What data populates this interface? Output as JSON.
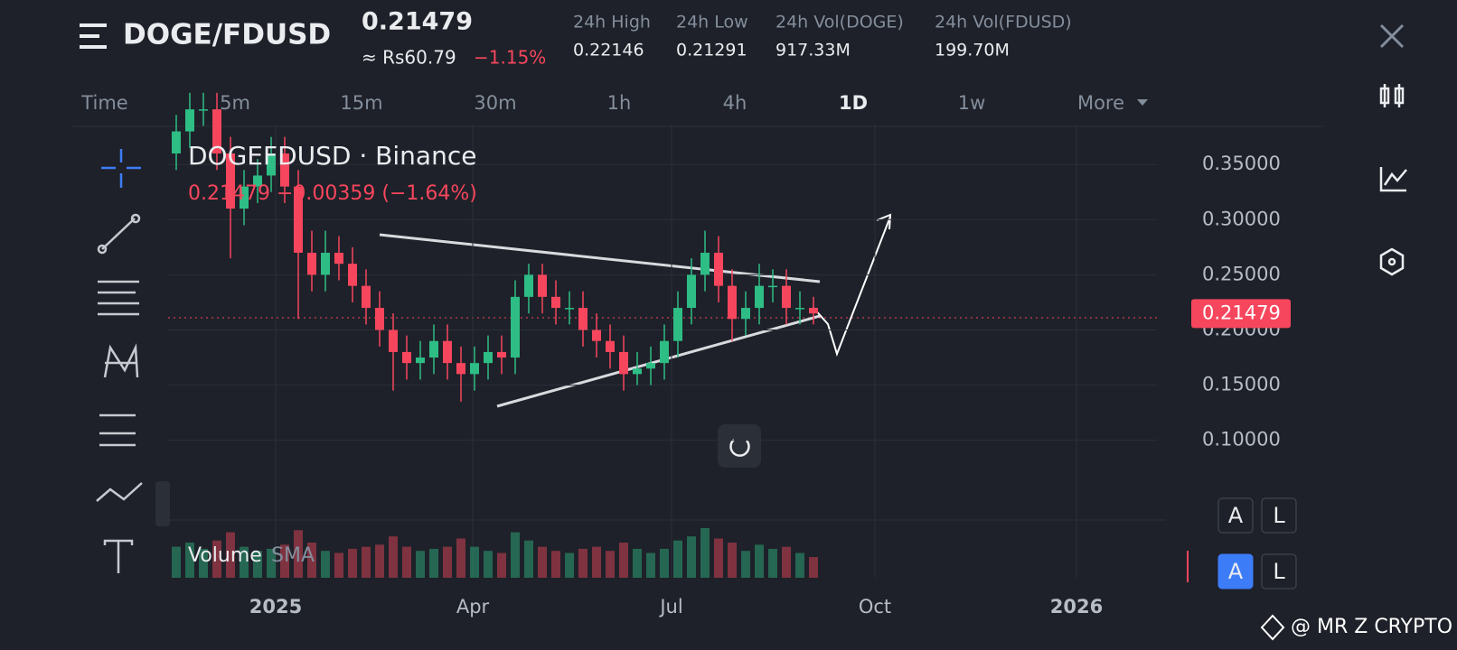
{
  "header": {
    "pair": "DOGE/FDUSD",
    "price": "0.21479",
    "fiat": "≈ Rs60.79",
    "change": "−1.15%",
    "stats": [
      {
        "label": "24h High",
        "value": "0.22146"
      },
      {
        "label": "24h Low",
        "value": "0.21291"
      },
      {
        "label": "24h Vol(DOGE)",
        "value": "917.33M"
      },
      {
        "label": "24h Vol(FDUSD)",
        "value": "199.70M"
      }
    ]
  },
  "timeframes": [
    "Time",
    "5m",
    "15m",
    "30m",
    "1h",
    "4h",
    "1D",
    "1w",
    "More"
  ],
  "chart_data": {
    "type": "candlestick",
    "title": "DOGEFDUSD · Binance",
    "subtitle": "0.21479 −0.00359 (−1.64%)",
    "open": [
      0.36,
      0.38,
      0.4,
      0.4,
      0.36,
      0.31,
      0.33,
      0.34,
      0.36,
      0.33,
      0.27,
      0.25,
      0.27,
      0.26,
      0.24,
      0.22,
      0.2,
      0.18,
      0.17,
      0.175,
      0.19,
      0.17,
      0.16,
      0.17,
      0.18,
      0.175,
      0.23,
      0.25,
      0.23,
      0.22,
      0.22,
      0.2,
      0.19,
      0.18,
      0.16,
      0.165,
      0.17,
      0.19,
      0.22,
      0.25,
      0.27,
      0.24,
      0.21,
      0.22,
      0.24,
      0.24,
      0.22,
      0.22
    ],
    "high": [
      0.395,
      0.415,
      0.415,
      0.415,
      0.375,
      0.345,
      0.355,
      0.375,
      0.375,
      0.345,
      0.29,
      0.29,
      0.285,
      0.275,
      0.255,
      0.235,
      0.215,
      0.195,
      0.19,
      0.205,
      0.205,
      0.185,
      0.185,
      0.195,
      0.195,
      0.245,
      0.26,
      0.26,
      0.245,
      0.235,
      0.235,
      0.215,
      0.205,
      0.195,
      0.18,
      0.185,
      0.205,
      0.235,
      0.265,
      0.29,
      0.285,
      0.255,
      0.235,
      0.26,
      0.255,
      0.255,
      0.235,
      0.23
    ],
    "low": [
      0.345,
      0.365,
      0.385,
      0.345,
      0.265,
      0.295,
      0.315,
      0.325,
      0.315,
      0.21,
      0.235,
      0.235,
      0.245,
      0.225,
      0.205,
      0.185,
      0.145,
      0.155,
      0.155,
      0.16,
      0.155,
      0.135,
      0.145,
      0.155,
      0.16,
      0.16,
      0.215,
      0.215,
      0.205,
      0.205,
      0.185,
      0.175,
      0.165,
      0.145,
      0.15,
      0.15,
      0.155,
      0.175,
      0.205,
      0.235,
      0.225,
      0.19,
      0.195,
      0.205,
      0.225,
      0.205,
      0.205,
      0.205
    ],
    "close": [
      0.38,
      0.4,
      0.4,
      0.36,
      0.31,
      0.33,
      0.34,
      0.36,
      0.33,
      0.27,
      0.25,
      0.27,
      0.26,
      0.24,
      0.22,
      0.2,
      0.18,
      0.17,
      0.175,
      0.19,
      0.17,
      0.16,
      0.17,
      0.18,
      0.175,
      0.23,
      0.25,
      0.23,
      0.22,
      0.22,
      0.2,
      0.19,
      0.18,
      0.16,
      0.165,
      0.17,
      0.19,
      0.22,
      0.25,
      0.27,
      0.24,
      0.21,
      0.22,
      0.24,
      0.24,
      0.22,
      0.22,
      0.215
    ],
    "volume": [
      30,
      34,
      28,
      36,
      44,
      30,
      26,
      28,
      32,
      46,
      34,
      26,
      24,
      28,
      30,
      32,
      40,
      30,
      26,
      28,
      30,
      38,
      30,
      26,
      24,
      44,
      36,
      30,
      26,
      24,
      28,
      30,
      26,
      34,
      28,
      24,
      28,
      36,
      40,
      48,
      38,
      34,
      26,
      32,
      28,
      30,
      24,
      20
    ],
    "ylim": [
      0.049,
      0.387
    ],
    "yticks": [
      {
        "value": 0.35,
        "label": "0.35000"
      },
      {
        "value": 0.3,
        "label": "0.30000"
      },
      {
        "value": 0.25,
        "label": "0.25000"
      },
      {
        "value": 0.2,
        "label": "0.20000"
      },
      {
        "value": 0.15,
        "label": "0.15000"
      },
      {
        "value": 0.1,
        "label": "0.10000"
      }
    ],
    "xticks": [
      "2025",
      "Apr",
      "Jul",
      "Oct",
      "2026"
    ],
    "last_price": 0.21479,
    "volume_label": "Volume",
    "sma_label": "SMA",
    "grid": true,
    "up_color": "#2ebd85",
    "down_color": "#f6465d"
  },
  "buttons": [
    "A",
    "L",
    "A",
    "L"
  ],
  "watermark": "@ MR Z CRYPTO"
}
